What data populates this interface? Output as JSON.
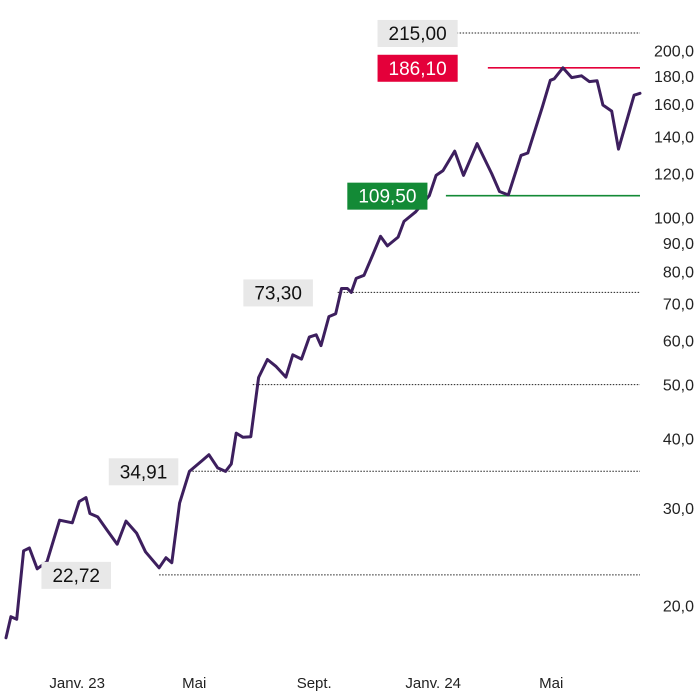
{
  "chart_data": {
    "type": "line",
    "title": "",
    "xlabel": "",
    "ylabel": "",
    "y_scale": "log",
    "ylim": [
      16.5,
      225
    ],
    "y_ticks": [
      {
        "value": 20,
        "label": "20,0"
      },
      {
        "value": 30,
        "label": "30,0"
      },
      {
        "value": 40,
        "label": "40,0"
      },
      {
        "value": 50,
        "label": "50,0"
      },
      {
        "value": 60,
        "label": "60,0"
      },
      {
        "value": 70,
        "label": "70,0"
      },
      {
        "value": 80,
        "label": "80,0"
      },
      {
        "value": 90,
        "label": "90,0"
      },
      {
        "value": 100,
        "label": "100,0"
      },
      {
        "value": 120,
        "label": "120,0"
      },
      {
        "value": 140,
        "label": "140,0"
      },
      {
        "value": 160,
        "label": "160,0"
      },
      {
        "value": 180,
        "label": "180,0"
      },
      {
        "value": 200,
        "label": "200,0"
      }
    ],
    "x_ticks": [
      {
        "date": "2023-01-01",
        "label": "Janv. 23"
      },
      {
        "date": "2023-05-01",
        "label": "Mai"
      },
      {
        "date": "2023-09-01",
        "label": "Sept."
      },
      {
        "date": "2024-01-01",
        "label": "Janv. 24"
      },
      {
        "date": "2024-05-01",
        "label": "Mai"
      }
    ],
    "xlim": [
      "2022-10-20",
      "2024-07-31"
    ],
    "line_color": "#3d1f5e",
    "series": [
      {
        "name": "",
        "points": [
          [
            "2022-10-20",
            17.5
          ],
          [
            "2022-10-25",
            19.1
          ],
          [
            "2022-10-31",
            18.9
          ],
          [
            "2022-11-07",
            25.1
          ],
          [
            "2022-11-13",
            25.4
          ],
          [
            "2022-11-21",
            23.3
          ],
          [
            "2022-12-01",
            24.0
          ],
          [
            "2022-12-14",
            28.5
          ],
          [
            "2022-12-27",
            28.2
          ],
          [
            "2023-01-03",
            30.8
          ],
          [
            "2023-01-10",
            31.3
          ],
          [
            "2023-01-14",
            29.3
          ],
          [
            "2023-01-22",
            28.9
          ],
          [
            "2023-02-01",
            27.3
          ],
          [
            "2023-02-11",
            25.8
          ],
          [
            "2023-02-20",
            28.4
          ],
          [
            "2023-03-03",
            27.0
          ],
          [
            "2023-03-12",
            25.0
          ],
          [
            "2023-03-26",
            23.4
          ],
          [
            "2023-04-02",
            24.4
          ],
          [
            "2023-04-08",
            23.9
          ],
          [
            "2023-04-16",
            30.6
          ],
          [
            "2023-04-26",
            34.9
          ],
          [
            "2023-05-09",
            36.5
          ],
          [
            "2023-05-16",
            37.4
          ],
          [
            "2023-05-25",
            35.4
          ],
          [
            "2023-06-02",
            34.9
          ],
          [
            "2023-06-08",
            36.0
          ],
          [
            "2023-06-13",
            40.9
          ],
          [
            "2023-06-20",
            40.2
          ],
          [
            "2023-06-28",
            40.3
          ],
          [
            "2023-07-06",
            51.5
          ],
          [
            "2023-07-15",
            55.5
          ],
          [
            "2023-07-24",
            53.9
          ],
          [
            "2023-08-03",
            51.6
          ],
          [
            "2023-08-10",
            56.6
          ],
          [
            "2023-08-19",
            55.6
          ],
          [
            "2023-08-27",
            60.9
          ],
          [
            "2023-09-03",
            61.5
          ],
          [
            "2023-09-08",
            58.8
          ],
          [
            "2023-09-16",
            66.3
          ],
          [
            "2023-09-23",
            67.1
          ],
          [
            "2023-09-29",
            74.5
          ],
          [
            "2023-10-05",
            74.5
          ],
          [
            "2023-10-09",
            73.3
          ],
          [
            "2023-10-14",
            77.7
          ],
          [
            "2023-10-22",
            78.7
          ],
          [
            "2023-10-31",
            85.6
          ],
          [
            "2023-11-08",
            92.5
          ],
          [
            "2023-11-15",
            88.9
          ],
          [
            "2023-11-26",
            92.2
          ],
          [
            "2023-12-02",
            98.4
          ],
          [
            "2023-12-14",
            102.4
          ],
          [
            "2023-12-28",
            109.5
          ],
          [
            "2024-01-04",
            119.1
          ],
          [
            "2024-01-11",
            121.5
          ],
          [
            "2024-01-23",
            131.7
          ],
          [
            "2024-02-01",
            119.1
          ],
          [
            "2024-02-15",
            135.9
          ],
          [
            "2024-03-01",
            120.0
          ],
          [
            "2024-03-09",
            111.4
          ],
          [
            "2024-03-18",
            109.8
          ],
          [
            "2024-03-31",
            129.4
          ],
          [
            "2024-04-07",
            130.7
          ],
          [
            "2024-04-22",
            158.5
          ],
          [
            "2024-04-30",
            176.7
          ],
          [
            "2024-05-04",
            177.8
          ],
          [
            "2024-05-13",
            186.1
          ],
          [
            "2024-05-22",
            178.7
          ],
          [
            "2024-06-01",
            180.0
          ],
          [
            "2024-06-09",
            175.7
          ],
          [
            "2024-06-17",
            176.3
          ],
          [
            "2024-06-23",
            159.5
          ],
          [
            "2024-07-02",
            155.5
          ],
          [
            "2024-07-09",
            132.8
          ],
          [
            "2024-07-25",
            166.1
          ],
          [
            "2024-07-31",
            167.4
          ]
        ]
      }
    ],
    "levels": [
      {
        "value": 215.0,
        "label": "215,00",
        "label_date": "2023-12-16",
        "line_from": "2023-12-16",
        "line_style": "dotted",
        "line_color": "#222222",
        "box_color": "#e8e8e8",
        "text_color": "#111111"
      },
      {
        "value": 186.1,
        "label": "186,10",
        "label_date": "2023-12-16",
        "line_from": "2024-02-26",
        "line_style": "solid",
        "line_color": "#e4003a",
        "box_color": "#e4003a",
        "text_color": "#ffffff"
      },
      {
        "value": 109.5,
        "label": "109,50",
        "label_date": "2023-11-15",
        "line_from": "2024-01-14",
        "line_style": "solid",
        "line_color": "#138a36",
        "box_color": "#138a36",
        "text_color": "#ffffff"
      },
      {
        "value": 73.3,
        "label": "73,30",
        "label_date": "2023-07-26",
        "line_from": "2023-09-25",
        "line_style": "dotted",
        "line_color": "#222222",
        "box_color": "#e8e8e8",
        "text_color": "#111111"
      },
      {
        "value": 50.0,
        "label": "",
        "label_date": "",
        "line_from": "2023-06-30",
        "line_style": "dotted",
        "line_color": "#222222",
        "box_color": "",
        "text_color": ""
      },
      {
        "value": 34.91,
        "label": "34,91",
        "label_date": "2023-03-10",
        "line_from": "2023-04-26",
        "line_style": "dotted",
        "line_color": "#222222",
        "box_color": "#e8e8e8",
        "text_color": "#111111"
      },
      {
        "value": 22.72,
        "label": "22,72",
        "label_date": "2022-12-31",
        "line_from": "2023-03-26",
        "line_style": "dotted",
        "line_color": "#222222",
        "box_color": "#e8e8e8",
        "text_color": "#111111"
      }
    ]
  }
}
